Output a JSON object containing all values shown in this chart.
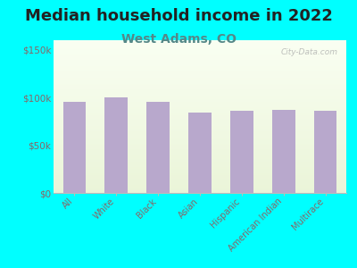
{
  "title": "Median household income in 2022",
  "subtitle": "West Adams, CO",
  "categories": [
    "All",
    "White",
    "Black",
    "Asian",
    "Hispanic",
    "American Indian",
    "Multirace"
  ],
  "values": [
    95000,
    100000,
    95000,
    84000,
    86000,
    87000,
    86000
  ],
  "bar_color": "#b8a8cc",
  "background_outer": "#00ffff",
  "title_fontsize": 13,
  "subtitle_fontsize": 10,
  "subtitle_color": "#558888",
  "title_color": "#222222",
  "tick_label_color": "#886666",
  "ytick_label_color": "#886666",
  "watermark": "City-Data.com",
  "ylim": [
    0,
    160000
  ],
  "yticks": [
    0,
    50000,
    100000,
    150000
  ],
  "ytick_labels": [
    "$0",
    "$50k",
    "$100k",
    "$150k"
  ]
}
